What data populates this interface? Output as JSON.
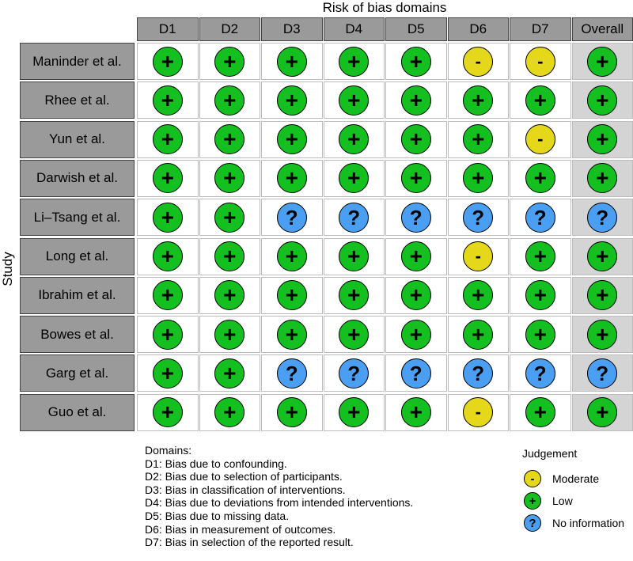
{
  "chart_data": {
    "type": "table",
    "title": "Risk of bias domains",
    "ylabel": "Study",
    "columns": [
      "D1",
      "D2",
      "D3",
      "D4",
      "D5",
      "D6",
      "D7",
      "Overall"
    ],
    "rows": [
      {
        "study": "Maninder et al.",
        "judgements": [
          "low",
          "low",
          "low",
          "low",
          "low",
          "moderate",
          "moderate",
          "low"
        ]
      },
      {
        "study": "Rhee et al.",
        "judgements": [
          "low",
          "low",
          "low",
          "low",
          "low",
          "low",
          "low",
          "low"
        ]
      },
      {
        "study": "Yun et al.",
        "judgements": [
          "low",
          "low",
          "low",
          "low",
          "low",
          "low",
          "moderate",
          "low"
        ]
      },
      {
        "study": "Darwish et al.",
        "judgements": [
          "low",
          "low",
          "low",
          "low",
          "low",
          "low",
          "low",
          "low"
        ]
      },
      {
        "study": "Li–Tsang et al.",
        "judgements": [
          "low",
          "low",
          "noinfo",
          "noinfo",
          "noinfo",
          "noinfo",
          "noinfo",
          "noinfo"
        ]
      },
      {
        "study": "Long et al.",
        "judgements": [
          "low",
          "low",
          "low",
          "low",
          "low",
          "moderate",
          "low",
          "low"
        ]
      },
      {
        "study": "Ibrahim et al.",
        "judgements": [
          "low",
          "low",
          "low",
          "low",
          "low",
          "low",
          "low",
          "low"
        ]
      },
      {
        "study": "Bowes et al.",
        "judgements": [
          "low",
          "low",
          "low",
          "low",
          "low",
          "low",
          "low",
          "low"
        ]
      },
      {
        "study": "Garg et al.",
        "judgements": [
          "low",
          "low",
          "noinfo",
          "noinfo",
          "noinfo",
          "noinfo",
          "noinfo",
          "noinfo"
        ]
      },
      {
        "study": "Guo et al.",
        "judgements": [
          "low",
          "low",
          "low",
          "low",
          "low",
          "moderate",
          "low",
          "low"
        ]
      }
    ]
  },
  "symbols": {
    "low": "+",
    "moderate": "-",
    "noinfo": "?"
  },
  "colors": {
    "low": "#14c01f",
    "moderate": "#e5d81a",
    "noinfo": "#4a9ff2"
  },
  "domains_heading": "Domains:",
  "domains": [
    "D1: Bias due to confounding.",
    "D2: Bias due to selection of participants.",
    "D3: Bias in classification of interventions.",
    "D4: Bias due to deviations from intended interventions.",
    "D5: Bias due to missing data.",
    "D6: Bias in measurement of outcomes.",
    "D7: Bias in selection of the reported result."
  ],
  "legend": {
    "title": "Judgement",
    "items": [
      {
        "key": "moderate",
        "label": "Moderate"
      },
      {
        "key": "low",
        "label": "Low"
      },
      {
        "key": "noinfo",
        "label": "No information"
      }
    ]
  }
}
